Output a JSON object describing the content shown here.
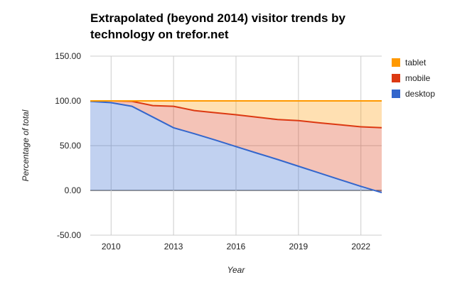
{
  "chart_data": {
    "type": "area",
    "title": "Extrapolated (beyond 2014) visitor trends by technology on trefor.net",
    "xlabel": "Year",
    "ylabel": "Percentage of total",
    "xlim": [
      2009,
      2023
    ],
    "ylim": [
      -50,
      150
    ],
    "y_ticks": [
      150,
      100,
      50,
      0,
      -50
    ],
    "y_tick_labels": [
      "150.00",
      "100.00",
      "50.00",
      "0.00",
      "-50.00"
    ],
    "x_ticks": [
      2010,
      2013,
      2016,
      2019,
      2022
    ],
    "x_tick_labels": [
      "2010",
      "2013",
      "2016",
      "2019",
      "2022"
    ],
    "stacked": true,
    "grid": "horizontal",
    "legend_position": "right",
    "x": [
      2009,
      2010,
      2011,
      2012,
      2013,
      2014,
      2015,
      2016,
      2017,
      2018,
      2019,
      2020,
      2021,
      2022,
      2023
    ],
    "series": [
      {
        "name": "desktop",
        "color": "#3366cc",
        "values": [
          99.5,
          98,
          94,
          82,
          70,
          63.3,
          56.3,
          49,
          41.7,
          34.5,
          27,
          19.5,
          12,
          4.5,
          -2.5
        ]
      },
      {
        "name": "mobile",
        "color": "#dc3912",
        "values": [
          0.5,
          2,
          5.5,
          12.8,
          24,
          25.9,
          30.5,
          35.5,
          40.1,
          44.6,
          51,
          56,
          61.3,
          66.5,
          72.5
        ]
      },
      {
        "name": "tablet",
        "color": "#ff9900",
        "values": [
          0,
          0,
          0.5,
          5.2,
          6,
          10.8,
          13.2,
          15.5,
          18.2,
          20.9,
          22,
          24.5,
          26.7,
          29,
          30
        ]
      }
    ]
  }
}
